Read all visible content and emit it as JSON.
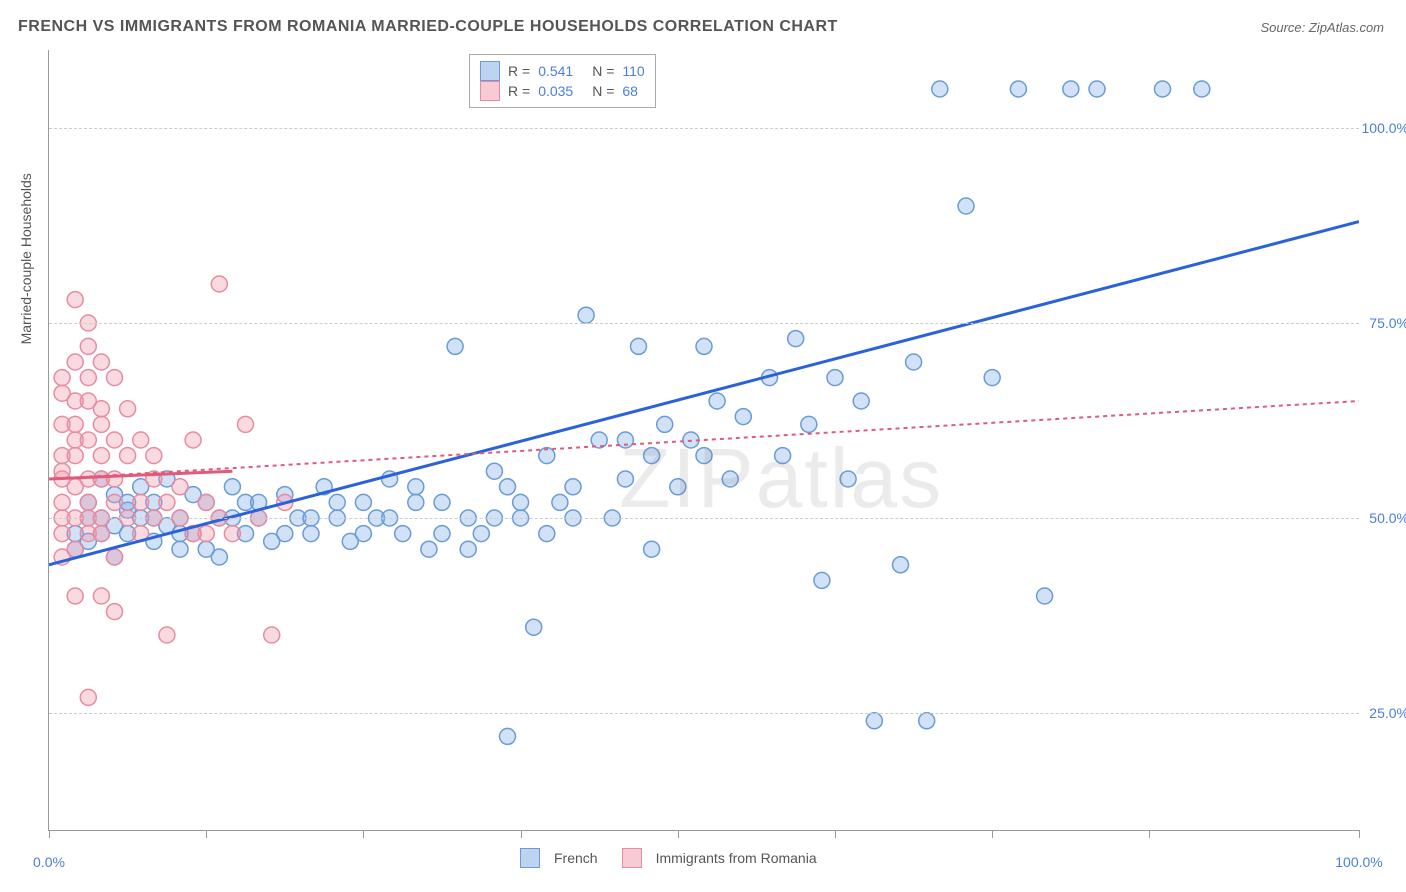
{
  "title": "FRENCH VS IMMIGRANTS FROM ROMANIA MARRIED-COUPLE HOUSEHOLDS CORRELATION CHART",
  "source": "Source: ZipAtlas.com",
  "watermark": "ZIPatlas",
  "yaxis_label": "Married-couple Households",
  "chart": {
    "type": "scatter",
    "xlim": [
      0,
      100
    ],
    "ylim": [
      10,
      110
    ],
    "xticks": [
      0,
      12,
      24,
      36,
      48,
      60,
      72,
      84,
      100
    ],
    "xtick_labels_shown": {
      "0": "0.0%",
      "100": "100.0%"
    },
    "yticks": [
      25,
      50,
      75,
      100
    ],
    "ytick_labels": [
      "25.0%",
      "50.0%",
      "75.0%",
      "100.0%"
    ],
    "grid_color": "#cccccc",
    "axis_color": "#999999",
    "tick_label_color": "#4a7fd8",
    "marker_radius": 8,
    "marker_stroke_width": 1.5,
    "series": [
      {
        "name": "French",
        "color_fill": "rgba(122,168,230,0.35)",
        "color_stroke": "#6a9bd8",
        "trend_color": "#2962d9",
        "trend_width": 3,
        "trend_dash": "none",
        "trend": {
          "x1": 0,
          "y1": 44,
          "x2": 100,
          "y2": 88
        },
        "r": "0.541",
        "n": "110",
        "points": [
          [
            2,
            48
          ],
          [
            3,
            52
          ],
          [
            3,
            47
          ],
          [
            4,
            55
          ],
          [
            4,
            50
          ],
          [
            5,
            49
          ],
          [
            5,
            53
          ],
          [
            5,
            45
          ],
          [
            6,
            51
          ],
          [
            6,
            48
          ],
          [
            7,
            54
          ],
          [
            7,
            50
          ],
          [
            8,
            52
          ],
          [
            8,
            47
          ],
          [
            9,
            49
          ],
          [
            9,
            55
          ],
          [
            10,
            50
          ],
          [
            10,
            46
          ],
          [
            11,
            53
          ],
          [
            11,
            48
          ],
          [
            12,
            52
          ],
          [
            13,
            50
          ],
          [
            13,
            45
          ],
          [
            14,
            54
          ],
          [
            15,
            48
          ],
          [
            15,
            52
          ],
          [
            16,
            50
          ],
          [
            17,
            47
          ],
          [
            18,
            53
          ],
          [
            19,
            50
          ],
          [
            20,
            48
          ],
          [
            21,
            54
          ],
          [
            22,
            50
          ],
          [
            23,
            47
          ],
          [
            24,
            52
          ],
          [
            25,
            50
          ],
          [
            26,
            55
          ],
          [
            27,
            48
          ],
          [
            28,
            54
          ],
          [
            29,
            46
          ],
          [
            30,
            52
          ],
          [
            31,
            72
          ],
          [
            32,
            50
          ],
          [
            33,
            48
          ],
          [
            34,
            56
          ],
          [
            35,
            22
          ],
          [
            35,
            54
          ],
          [
            36,
            50
          ],
          [
            37,
            36
          ],
          [
            38,
            58
          ],
          [
            39,
            52
          ],
          [
            40,
            54
          ],
          [
            41,
            76
          ],
          [
            42,
            60
          ],
          [
            43,
            50
          ],
          [
            44,
            55
          ],
          [
            45,
            72
          ],
          [
            46,
            58
          ],
          [
            46,
            46
          ],
          [
            47,
            62
          ],
          [
            48,
            54
          ],
          [
            49,
            60
          ],
          [
            50,
            58
          ],
          [
            50,
            72
          ],
          [
            51,
            65
          ],
          [
            52,
            55
          ],
          [
            53,
            63
          ],
          [
            44,
            60
          ],
          [
            55,
            68
          ],
          [
            56,
            58
          ],
          [
            57,
            73
          ],
          [
            58,
            62
          ],
          [
            59,
            42
          ],
          [
            60,
            68
          ],
          [
            61,
            55
          ],
          [
            62,
            65
          ],
          [
            63,
            24
          ],
          [
            65,
            44
          ],
          [
            66,
            70
          ],
          [
            67,
            24
          ],
          [
            68,
            105
          ],
          [
            70,
            90
          ],
          [
            72,
            68
          ],
          [
            74,
            105
          ],
          [
            76,
            40
          ],
          [
            78,
            105
          ],
          [
            80,
            105
          ],
          [
            85,
            105
          ],
          [
            88,
            105
          ],
          [
            2,
            46
          ],
          [
            3,
            50
          ],
          [
            4,
            48
          ],
          [
            6,
            52
          ],
          [
            8,
            50
          ],
          [
            10,
            48
          ],
          [
            12,
            46
          ],
          [
            14,
            50
          ],
          [
            16,
            52
          ],
          [
            18,
            48
          ],
          [
            20,
            50
          ],
          [
            22,
            52
          ],
          [
            24,
            48
          ],
          [
            26,
            50
          ],
          [
            28,
            52
          ],
          [
            30,
            48
          ],
          [
            32,
            46
          ],
          [
            34,
            50
          ],
          [
            36,
            52
          ],
          [
            38,
            48
          ],
          [
            40,
            50
          ]
        ]
      },
      {
        "name": "Immigrants from Romania",
        "color_fill": "rgba(240,150,170,0.35)",
        "color_stroke": "#e88ba0",
        "trend_color": "#e05a7a",
        "trend_width": 2,
        "trend_dash": "4 4",
        "solid_trend": {
          "x1": 0,
          "y1": 55,
          "x2": 14,
          "y2": 56
        },
        "trend": {
          "x1": 0,
          "y1": 55,
          "x2": 100,
          "y2": 65
        },
        "r": "0.035",
        "n": "68",
        "points": [
          [
            1,
            50
          ],
          [
            1,
            55
          ],
          [
            1,
            58
          ],
          [
            1,
            62
          ],
          [
            1,
            66
          ],
          [
            1,
            68
          ],
          [
            1,
            48
          ],
          [
            1,
            45
          ],
          [
            1,
            52
          ],
          [
            1,
            56
          ],
          [
            2,
            54
          ],
          [
            2,
            60
          ],
          [
            2,
            65
          ],
          [
            2,
            70
          ],
          [
            2,
            50
          ],
          [
            2,
            46
          ],
          [
            2,
            78
          ],
          [
            2,
            40
          ],
          [
            2,
            58
          ],
          [
            2,
            62
          ],
          [
            3,
            55
          ],
          [
            3,
            50
          ],
          [
            3,
            65
          ],
          [
            3,
            72
          ],
          [
            3,
            48
          ],
          [
            3,
            27
          ],
          [
            3,
            60
          ],
          [
            3,
            68
          ],
          [
            3,
            75
          ],
          [
            3,
            52
          ],
          [
            4,
            50
          ],
          [
            4,
            58
          ],
          [
            4,
            64
          ],
          [
            4,
            40
          ],
          [
            4,
            55
          ],
          [
            4,
            70
          ],
          [
            4,
            48
          ],
          [
            4,
            62
          ],
          [
            5,
            52
          ],
          [
            5,
            60
          ],
          [
            5,
            45
          ],
          [
            5,
            68
          ],
          [
            5,
            55
          ],
          [
            5,
            38
          ],
          [
            6,
            50
          ],
          [
            6,
            58
          ],
          [
            6,
            64
          ],
          [
            7,
            52
          ],
          [
            7,
            48
          ],
          [
            7,
            60
          ],
          [
            8,
            55
          ],
          [
            8,
            50
          ],
          [
            9,
            52
          ],
          [
            9,
            35
          ],
          [
            10,
            54
          ],
          [
            10,
            50
          ],
          [
            11,
            48
          ],
          [
            11,
            60
          ],
          [
            12,
            52
          ],
          [
            13,
            50
          ],
          [
            13,
            80
          ],
          [
            14,
            48
          ],
          [
            15,
            62
          ],
          [
            16,
            50
          ],
          [
            17,
            35
          ],
          [
            18,
            52
          ],
          [
            12,
            48
          ],
          [
            8,
            58
          ]
        ]
      }
    ]
  },
  "legend_top": {
    "rows": [
      {
        "swatch_fill": "rgba(122,168,230,0.5)",
        "swatch_border": "#6a9bd8",
        "r_label": "R =",
        "r_val": "0.541",
        "n_label": "N =",
        "n_val": "110"
      },
      {
        "swatch_fill": "rgba(240,150,170,0.5)",
        "swatch_border": "#e88ba0",
        "r_label": "R =",
        "r_val": "0.035",
        "n_label": "N =",
        "n_val": "68"
      }
    ]
  },
  "legend_bottom": {
    "items": [
      {
        "swatch_fill": "rgba(122,168,230,0.5)",
        "swatch_border": "#6a9bd8",
        "label": "French"
      },
      {
        "swatch_fill": "rgba(240,150,170,0.5)",
        "swatch_border": "#e88ba0",
        "label": "Immigrants from Romania"
      }
    ]
  }
}
